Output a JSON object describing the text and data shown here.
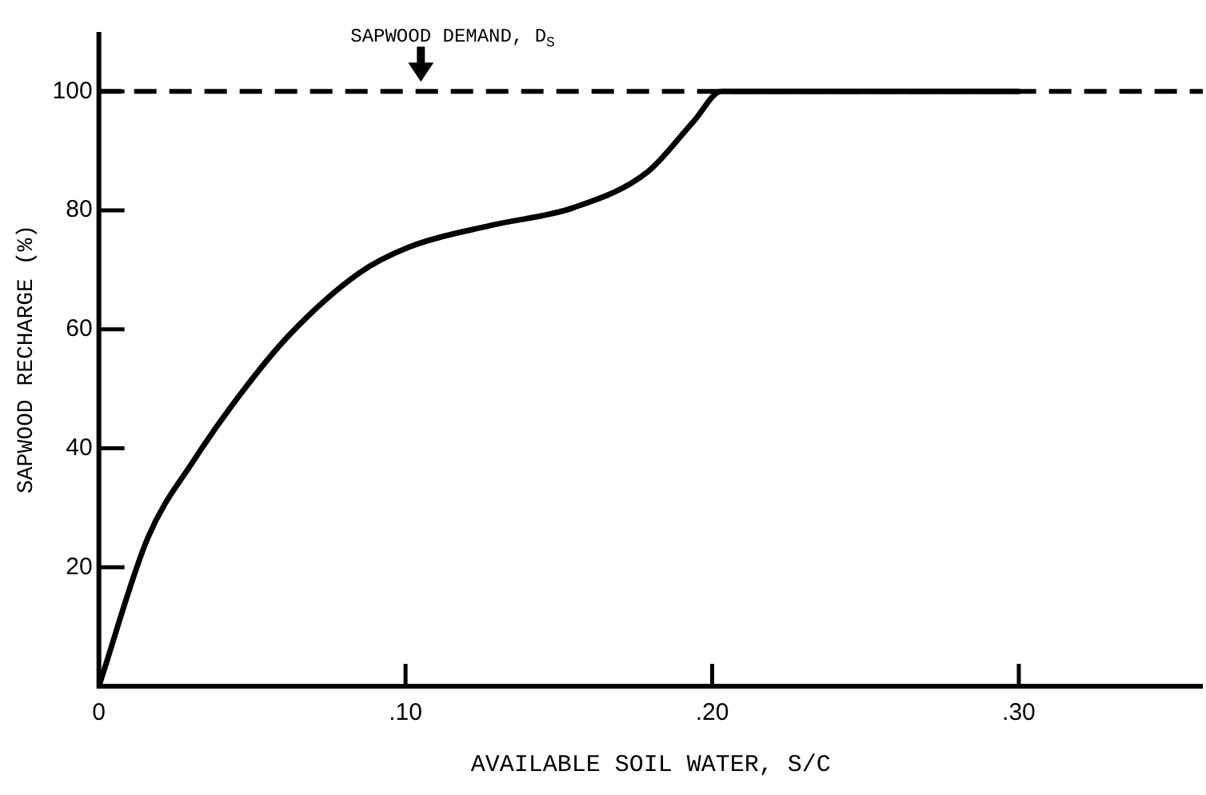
{
  "chart_data": {
    "type": "line",
    "xlabel": "AVAILABLE SOIL WATER, S/C",
    "ylabel": "SAPWOOD RECHARGE (%)",
    "x": [
      0,
      0.016,
      0.031,
      0.046,
      0.062,
      0.085,
      0.102,
      0.128,
      0.155,
      0.179,
      0.194,
      0.203,
      0.3
    ],
    "series": [
      {
        "color": "#000000",
        "values": [
          0,
          25,
          38,
          49,
          59,
          69.5,
          74,
          77.5,
          80.5,
          86.5,
          95,
          100,
          100
        ]
      }
    ],
    "xlim": [
      0,
      0.36
    ],
    "ylim": [
      0,
      110
    ],
    "xticks": [
      {
        "value": 0,
        "label": "0"
      },
      {
        "value": 0.1,
        "label": ".10"
      },
      {
        "value": 0.2,
        "label": ".20"
      },
      {
        "value": 0.3,
        "label": ".30"
      }
    ],
    "yticks": [
      {
        "value": 0,
        "label": null
      },
      20,
      40,
      60,
      80,
      100
    ],
    "ref_lines": [
      {
        "axis": "y",
        "value": 100,
        "line_style": "dashed",
        "color": "#000000"
      }
    ],
    "annotations": [
      {
        "text": "SAPWOOD DEMAND, D$_{S}$",
        "x": 0.105,
        "y": 100
      }
    ],
    "grid": false,
    "legend": false,
    "marker": "none",
    "line_style": "solid"
  }
}
